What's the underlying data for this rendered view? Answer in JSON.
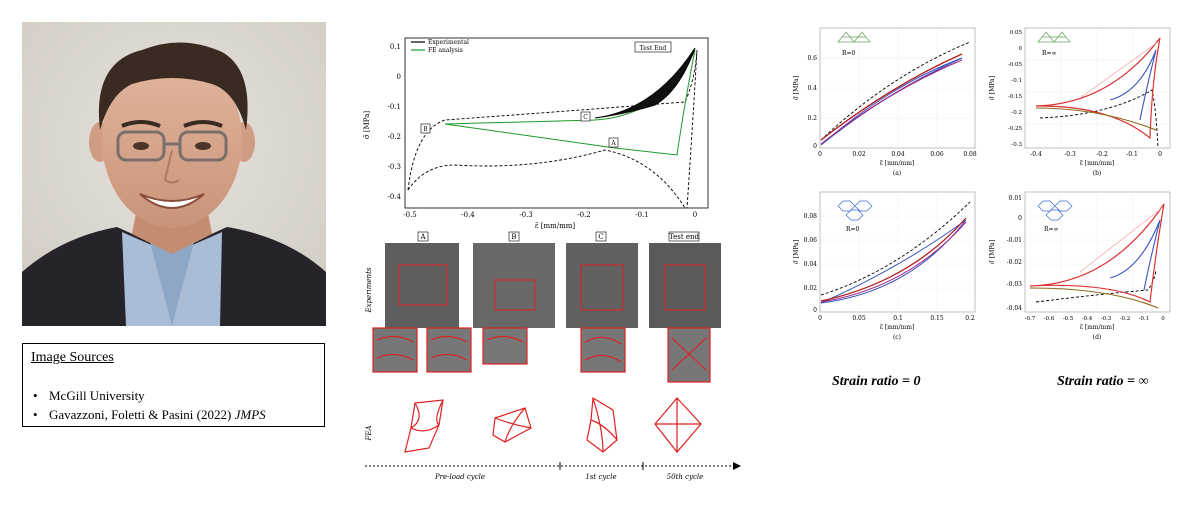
{
  "sources": {
    "title": "Image Sources",
    "items": [
      {
        "text": "McGill University"
      },
      {
        "text": "Gavazzoni, Foletti & Pasini (2022) ",
        "italic": "JMPS"
      }
    ]
  },
  "center_figure": {
    "legend": [
      "Experimental",
      "FE analysis"
    ],
    "annotations": {
      "test_end": "Test End",
      "a": "A",
      "b": "B",
      "c": "C"
    },
    "yticks": [
      "0.1",
      "0",
      "-0.1",
      "-0.2",
      "-0.3",
      "-0.4"
    ],
    "xticks": [
      "-0.5",
      "-0.4",
      "-0.3",
      "-0.2",
      "-0.1",
      "0"
    ],
    "ylabel": "σ̃ [MPa]",
    "xlabel": "ε̃ [mm/mm]",
    "photo_labels": [
      "A",
      "B",
      "C",
      "Test end"
    ],
    "row_experiments": "Experiments",
    "row_fea": "FEA",
    "timeline": [
      "Pre-load cycle",
      "1st cycle",
      "50th cycle"
    ]
  },
  "grid_plots": {
    "a": {
      "label": "(a)",
      "inset": "R=0",
      "ylabel": "σ̃ [MPa]",
      "xlabel": "ε̃ [mm/mm]",
      "yticks": [
        "0.6",
        "0.4",
        "0.2",
        "0"
      ],
      "xticks": [
        "0",
        "0.02",
        "0.04",
        "0.06",
        "0.08"
      ]
    },
    "b": {
      "label": "(b)",
      "inset": "R=∞",
      "ylabel": "σ̃ [MPa]",
      "xlabel": "ε̃ [mm/mm]",
      "yticks": [
        "0.05",
        "0",
        "-0.05",
        "-0.1",
        "-0.15",
        "-0.2",
        "-0.25",
        "-0.3"
      ],
      "xticks": [
        "-0.4",
        "-0.3",
        "-0.2",
        "-0.1",
        "0"
      ]
    },
    "c": {
      "label": "(c)",
      "inset": "R=0",
      "ylabel": "σ̃ [MPa]",
      "xlabel": "ε̃ [mm/mm]",
      "yticks": [
        "0.08",
        "0.06",
        "0.04",
        "0.02",
        "0"
      ],
      "xticks": [
        "0",
        "0.05",
        "0.1",
        "0.15",
        "0.2"
      ]
    },
    "d": {
      "label": "(d)",
      "inset": "R=∞",
      "ylabel": "σ̃ [MPa]",
      "xlabel": "ε̃ [mm/mm]",
      "yticks": [
        "0.01",
        "0",
        "-0.01",
        "-0.02",
        "-0.03",
        "-0.04"
      ],
      "xticks": [
        "-0.7",
        "-0.6",
        "-0.5",
        "-0.4",
        "-0.3",
        "-0.2",
        "-0.1",
        "0"
      ]
    }
  },
  "captions": {
    "ratio_zero": "Strain ratio = 0",
    "ratio_inf": "Strain ratio = ∞"
  }
}
